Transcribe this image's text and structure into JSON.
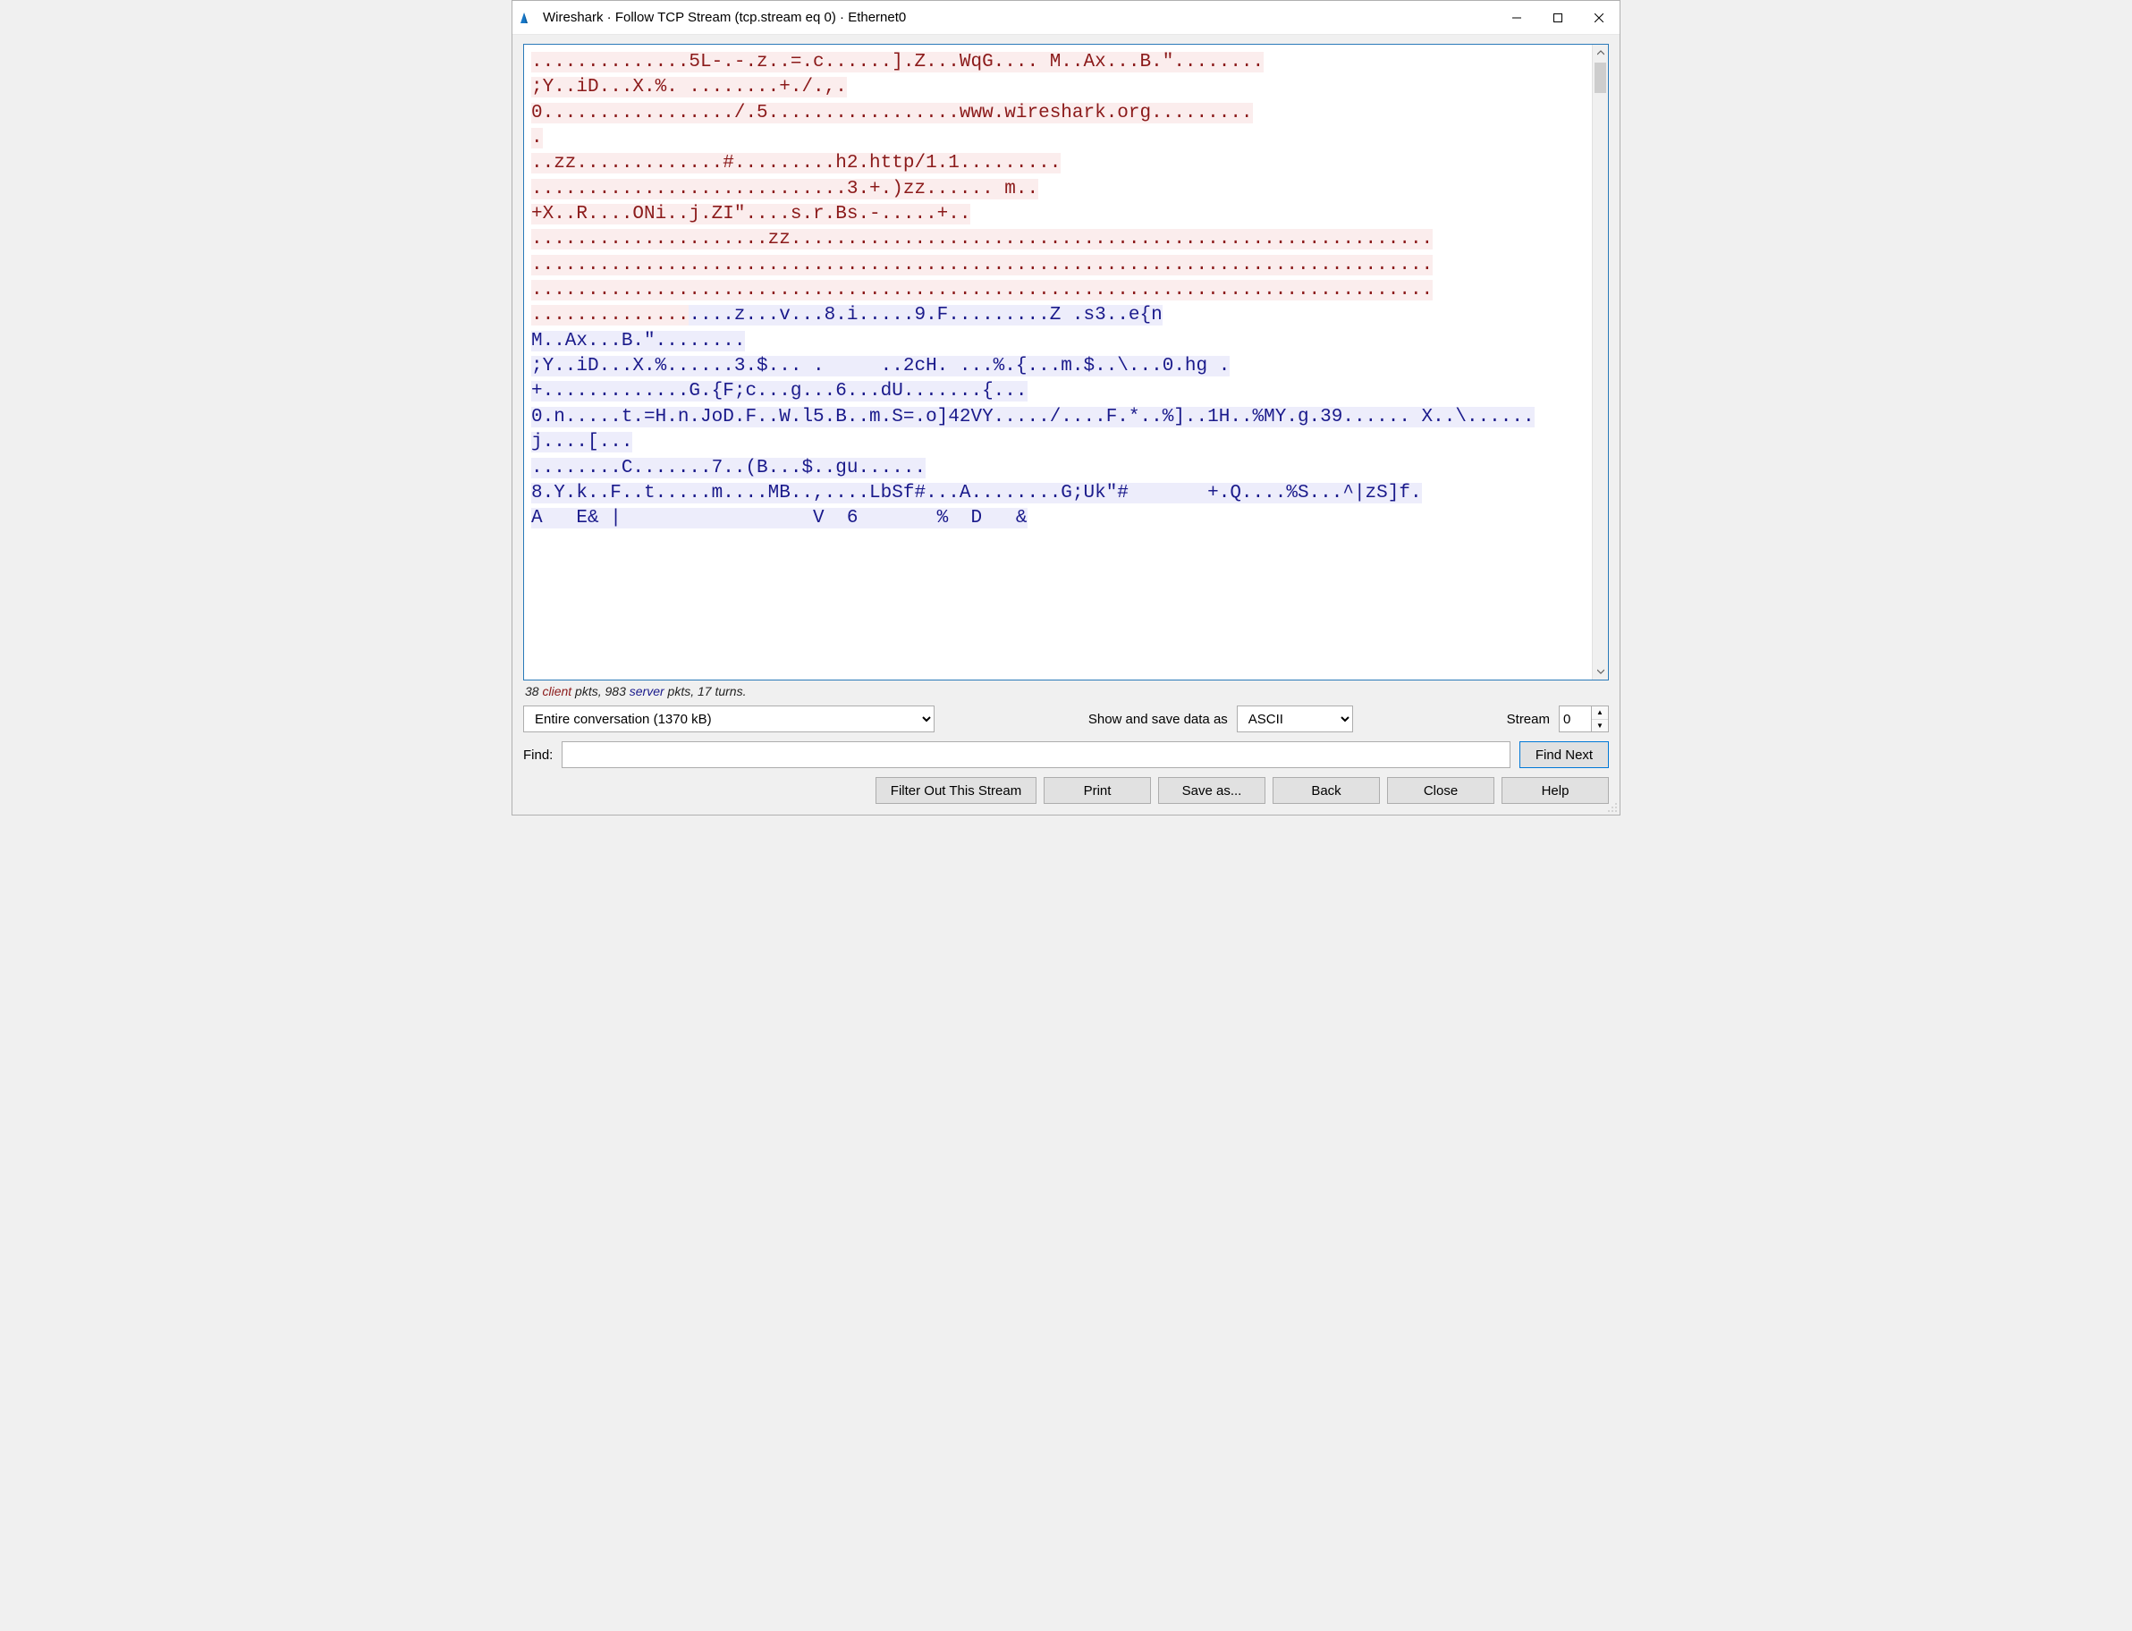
{
  "window": {
    "title": "Wireshark · Follow TCP Stream (tcp.stream eq 0) · Ethernet0"
  },
  "colors": {
    "client_bg": "#fbeded",
    "client_fg": "#8b1a1a",
    "server_bg": "#ededfb",
    "server_fg": "#1a1a8b",
    "border_accent": "#2a7ab9"
  },
  "stream": {
    "segments": [
      {
        "side": "client",
        "text": "..............5L-.-.z..=.c......].Z...WqG.... M..Ax...B.\"........\n;Y..iD...X.%. ........+./.,."
      },
      {
        "side": "plain",
        "text": "\n"
      },
      {
        "side": "client",
        "text": "0................./.5.................www.wireshark.org.........\n."
      },
      {
        "side": "plain",
        "text": "\n"
      },
      {
        "side": "client",
        "text": "..zz.............#.........h2.http/1.1.........\n............................3.+.)zz...... m..\n+X..R....ONi..j.ZI\"....s.r.Bs.-.....+.."
      },
      {
        "side": "plain",
        "text": "\n"
      },
      {
        "side": "client",
        "text": ".....................zz.........................................................\n................................................................................\n................................................................................\n.............."
      },
      {
        "side": "server",
        "text": "....z...v...8.i.....9.F.........Z .s3..e{n"
      },
      {
        "side": "plain",
        "text": "\n"
      },
      {
        "side": "server",
        "text": "M..Ax...B.\"........\n;Y..iD...X.%......3.$... .     ..2cH. ...%.{...m.$..\\...0.hg .\n+.............G.{F;c...g...6...dU.......{..."
      },
      {
        "side": "plain",
        "text": "\n"
      },
      {
        "side": "server",
        "text": "0.n.....t.=H.n.JoD.F..W.l5.B..m.S=.o]42VY...../....F.*..%]..1H..%MY.g.39...... X..\\......j....[..."
      },
      {
        "side": "plain",
        "text": "\n"
      },
      {
        "side": "server",
        "text": "........C.......7..(B...$..gu......"
      },
      {
        "side": "plain",
        "text": "\n"
      },
      {
        "side": "server",
        "text": "8.Y.k..F..t.....m....MB..,....LbSf#...A........G;Uk\"#       +.Q....%S...^|zS]f."
      },
      {
        "side": "plain",
        "text": "\n"
      },
      {
        "side": "server",
        "text": "A   E& |                 V  6       %  D   &"
      }
    ]
  },
  "stats": {
    "client_pkts": 38,
    "server_pkts": 983,
    "turns": 17,
    "prefix": "38 ",
    "client_word": "client",
    "mid1": " pkts, 983 ",
    "server_word": "server",
    "suffix": " pkts, 17 turns."
  },
  "controls": {
    "conversation_select": "Entire conversation (1370 kB)",
    "show_save_label": "Show and save data as",
    "format_select": "ASCII",
    "stream_label": "Stream",
    "stream_value": "0"
  },
  "find": {
    "label": "Find:",
    "value": "",
    "button": "Find Next"
  },
  "buttons": {
    "filter_out": "Filter Out This Stream",
    "print": "Print",
    "save_as": "Save as...",
    "back": "Back",
    "close": "Close",
    "help": "Help"
  }
}
